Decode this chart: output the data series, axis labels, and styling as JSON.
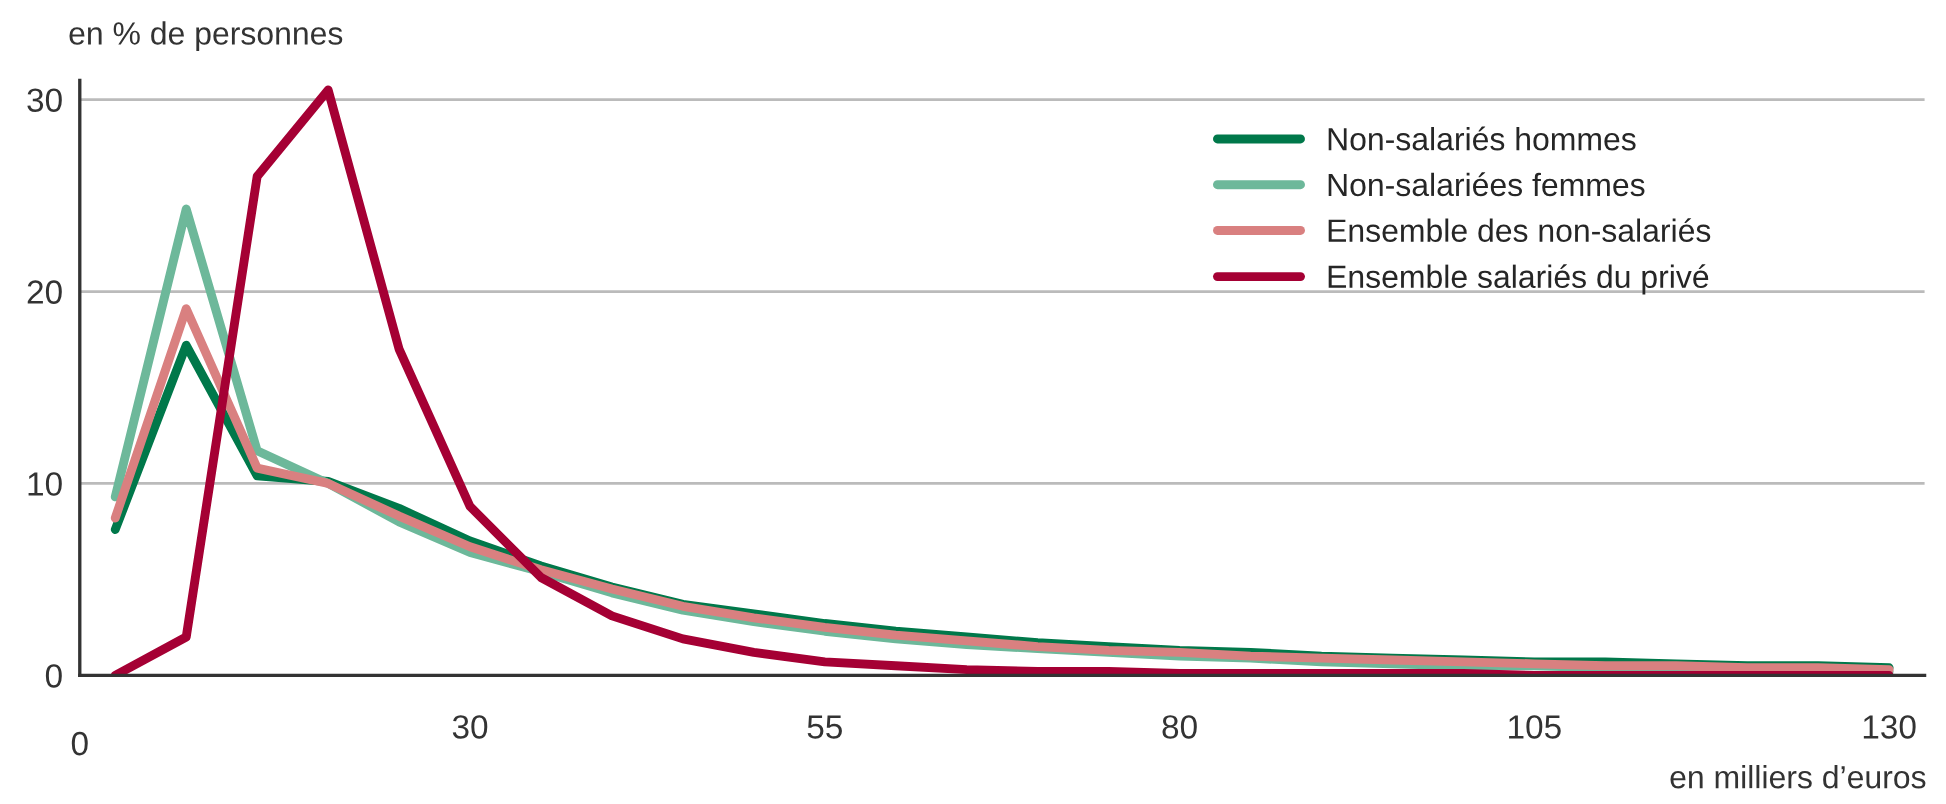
{
  "chart_data": {
    "type": "line",
    "ylabel": "en % de personnes",
    "xlabel": "en milliers d’euros",
    "categories": [
      null,
      null,
      null,
      null,
      null,
      "30",
      null,
      null,
      null,
      null,
      "55",
      null,
      null,
      null,
      null,
      "80",
      null,
      null,
      null,
      null,
      "105",
      null,
      null,
      null,
      null,
      "130"
    ],
    "annotations": [
      "0"
    ],
    "ylim": [
      0,
      31
    ],
    "yticks": [
      0,
      10,
      20,
      30
    ],
    "grid": "y",
    "legend": "top right",
    "marker": "none",
    "line_style": "solid",
    "series": [
      {
        "name": "Non-salariés hommes",
        "color": "#00784a",
        "values": [
          7.6,
          17.2,
          10.4,
          10.1,
          8.7,
          7.0,
          5.7,
          4.6,
          3.7,
          3.2,
          2.7,
          2.3,
          2.0,
          1.7,
          1.5,
          1.3,
          1.2,
          1.0,
          0.9,
          0.8,
          0.7,
          0.7,
          0.6,
          0.5,
          0.5,
          0.4
        ]
      },
      {
        "name": "Non-salariées femmes",
        "color": "#6db89a",
        "values": [
          9.3,
          24.3,
          11.7,
          10.0,
          8.0,
          6.4,
          5.4,
          4.3,
          3.4,
          2.8,
          2.3,
          1.9,
          1.6,
          1.4,
          1.2,
          1.0,
          0.9,
          0.7,
          0.6,
          0.5,
          0.5,
          0.4,
          0.4,
          0.3,
          0.3,
          0.2
        ]
      },
      {
        "name": "Ensemble des non-salariés",
        "color": "#d98080",
        "values": [
          8.2,
          19.1,
          10.8,
          10.0,
          8.3,
          6.7,
          5.5,
          4.5,
          3.6,
          3.0,
          2.5,
          2.1,
          1.8,
          1.5,
          1.3,
          1.2,
          1.0,
          0.9,
          0.8,
          0.7,
          0.6,
          0.5,
          0.5,
          0.4,
          0.4,
          0.3
        ]
      },
      {
        "name": "Ensemble salariés du privé",
        "color": "#a50034",
        "values": [
          0,
          2.0,
          26.0,
          30.5,
          17.0,
          8.8,
          5.1,
          3.1,
          1.9,
          1.2,
          0.7,
          0.5,
          0.3,
          0.2,
          0.2,
          0.1,
          0.1,
          0.1,
          0.1,
          0.1,
          0,
          0,
          0,
          0,
          0,
          0
        ]
      }
    ]
  }
}
